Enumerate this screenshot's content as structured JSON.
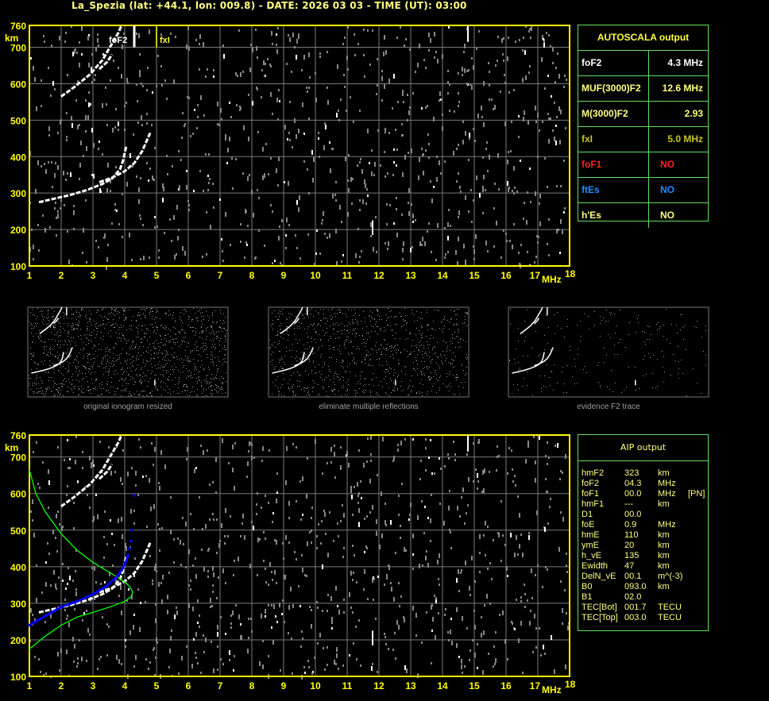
{
  "title": "La_Spezia (lat: +44.1, lon: 009.8) - DATE: 2026 03 03 - TIME (UT): 03:00",
  "colors": {
    "axis": "#ffff00",
    "grid": "#7a7a7a",
    "trace": "#ffffff",
    "profile": "#0000ff",
    "model": "#00ff00",
    "foF1": "#ff2020",
    "ftEs": "#1e90ff",
    "fxI": "#c8c820"
  },
  "autoscala": {
    "title": "AUTOSCALA output",
    "rows": [
      {
        "key": "foF2",
        "value": "4.3 MHz",
        "color": "#ffffff"
      },
      {
        "key": "MUF(3000)F2",
        "value": "12.6 MHz",
        "color": "#ffff80"
      },
      {
        "key": "M(3000)F2",
        "value": "2.93",
        "color": "#ffff80"
      },
      {
        "key": "fxI",
        "value": "5.0 MHz",
        "color": "#c8c820"
      },
      {
        "key": "foF1",
        "value": "NO",
        "color": "#ff2020"
      },
      {
        "key": "ftEs",
        "value": "NO",
        "color": "#1e90ff"
      },
      {
        "key": "h'Es",
        "value": "NO",
        "color": "#ffff80"
      }
    ]
  },
  "aip": {
    "title": "AIP output",
    "rows": [
      [
        "hmF2",
        "323",
        "km",
        ""
      ],
      [
        "foF2",
        "04.3",
        "MHz",
        ""
      ],
      [
        "foF1",
        "00.0",
        "MHz",
        "[PN]"
      ],
      [
        "hmF1",
        "---",
        "km",
        ""
      ],
      [
        "D1",
        "00.0",
        "",
        ""
      ],
      [
        "foE",
        "0.9",
        "MHz",
        ""
      ],
      [
        "hmE",
        "110",
        "km",
        ""
      ],
      [
        "ymE",
        "20",
        "km",
        ""
      ],
      [
        "h_vE",
        "135",
        "km",
        ""
      ],
      [
        "Ewidth",
        "47",
        "km",
        ""
      ],
      [
        "DelN_vE",
        "00.1",
        "m^(-3)",
        ""
      ],
      [
        "B0",
        "093.0",
        "km",
        ""
      ],
      [
        "B1",
        "02.0",
        "",
        ""
      ],
      [
        "TEC[Bot]",
        "001.7",
        "TECU",
        ""
      ],
      [
        "TEC[Top]",
        "003.0",
        "TECU",
        ""
      ]
    ]
  },
  "thumbnails": [
    "original ionogram resized",
    "eliminate multiple reflections",
    "evidence F2 trace"
  ],
  "chart_data": [
    {
      "type": "scatter",
      "ylabel": "km",
      "xlabel": "MHz",
      "xlim": [
        1,
        18
      ],
      "ylim": [
        100,
        760
      ],
      "xticks": [
        "1",
        "2",
        "3",
        "4",
        "5",
        "6",
        "7",
        "8",
        "9",
        "10",
        "11",
        "12",
        "13",
        "14",
        "15",
        "16",
        "17",
        "18"
      ],
      "yticks": [
        "100",
        "200",
        "300",
        "400",
        "500",
        "600",
        "700",
        "760"
      ],
      "grid": true,
      "annotations": [
        {
          "text": "foF2",
          "x": 4.3
        },
        {
          "text": "fxI",
          "x": 5.0
        }
      ],
      "series": [
        {
          "points": [
            [
              1.3,
              275
            ],
            [
              1.8,
              285
            ],
            [
              2.3,
              295
            ],
            [
              2.8,
              308
            ],
            [
              3.3,
              325
            ],
            [
              3.6,
              340
            ],
            [
              3.85,
              365
            ],
            [
              3.95,
              390
            ],
            [
              4.05,
              430
            ]
          ]
        },
        {
          "points": [
            [
              3.2,
              330
            ],
            [
              3.6,
              342
            ],
            [
              4.0,
              360
            ],
            [
              4.3,
              382
            ],
            [
              4.55,
              415
            ],
            [
              4.7,
              445
            ],
            [
              4.8,
              465
            ]
          ]
        },
        {
          "points": [
            [
              2.0,
              565
            ],
            [
              2.4,
              590
            ],
            [
              2.9,
              625
            ],
            [
              3.3,
              665
            ],
            [
              3.6,
              710
            ],
            [
              3.8,
              740
            ],
            [
              3.9,
              760
            ]
          ]
        },
        {
          "points": [
            [
              3.2,
              640
            ],
            [
              3.45,
              660
            ],
            [
              3.6,
              680
            ]
          ]
        }
      ]
    },
    {
      "type": "scatter",
      "ylabel": "km",
      "xlabel": "MHz",
      "xlim": [
        1,
        18
      ],
      "ylim": [
        100,
        760
      ],
      "xticks": [
        "1",
        "2",
        "3",
        "4",
        "5",
        "6",
        "7",
        "8",
        "9",
        "10",
        "11",
        "12",
        "13",
        "14",
        "15",
        "16",
        "17",
        "18"
      ],
      "yticks": [
        "100",
        "200",
        "300",
        "400",
        "500",
        "600",
        "700",
        "760"
      ],
      "grid": true,
      "profile_points": [
        [
          1.0,
          240
        ],
        [
          1.3,
          255
        ],
        [
          1.7,
          275
        ],
        [
          2.0,
          290
        ],
        [
          2.5,
          305
        ],
        [
          3.0,
          325
        ],
        [
          3.4,
          345
        ],
        [
          3.7,
          368
        ],
        [
          3.9,
          390
        ],
        [
          4.05,
          415
        ],
        [
          4.1,
          432
        ],
        [
          4.15,
          450
        ],
        [
          4.2,
          470
        ],
        [
          4.22,
          500
        ],
        [
          4.3,
          595
        ]
      ],
      "model_curve": [
        [
          1.0,
          665
        ],
        [
          1.2,
          600
        ],
        [
          1.5,
          550
        ],
        [
          2.0,
          490
        ],
        [
          2.5,
          445
        ],
        [
          3.0,
          412
        ],
        [
          3.5,
          385
        ],
        [
          3.8,
          370
        ],
        [
          4.05,
          355
        ],
        [
          4.2,
          340
        ],
        [
          4.25,
          330
        ],
        [
          4.2,
          318
        ],
        [
          4.0,
          305
        ],
        [
          3.6,
          292
        ],
        [
          3.0,
          275
        ],
        [
          2.5,
          262
        ],
        [
          2.0,
          240
        ],
        [
          1.5,
          210
        ],
        [
          1.0,
          175
        ]
      ]
    }
  ]
}
